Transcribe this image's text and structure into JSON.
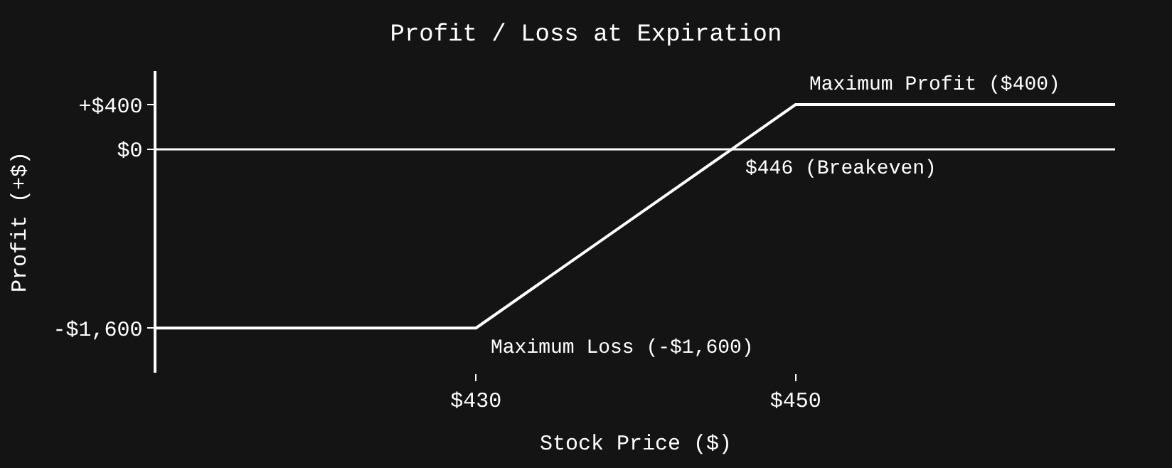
{
  "chart_data": {
    "type": "line",
    "title": "Profit / Loss at Expiration",
    "xlabel": "Stock Price ($)",
    "ylabel": "Profit (+$)",
    "x": [
      410,
      430,
      450,
      470
    ],
    "series": [
      {
        "color": "#ffffff",
        "values": [
          -1600,
          -1600,
          400,
          400
        ]
      }
    ],
    "xlim": [
      410,
      470
    ],
    "ylim": [
      -2000,
      700
    ],
    "xticks": [
      {
        "value": 430,
        "label": "$430"
      },
      {
        "value": 450,
        "label": "$450"
      }
    ],
    "yticks": [
      {
        "value": -1600,
        "label": "-$1,600"
      },
      {
        "value": 0,
        "label": "$0"
      },
      {
        "value": 400,
        "label": "+$400"
      }
    ],
    "ref_lines": [
      {
        "axis": "y",
        "value": 0,
        "color": "#ffffff"
      }
    ],
    "annotations": [
      {
        "text": "Maximum Profit ($400)",
        "x": 450,
        "y": 400
      },
      {
        "text": "$446 (Breakeven)",
        "x": 446,
        "y": 0
      },
      {
        "text": "Maximum Loss (-$1,600)",
        "x": 430,
        "y": -1600
      }
    ],
    "grid": false,
    "marker": "none",
    "line_style": "solid"
  }
}
